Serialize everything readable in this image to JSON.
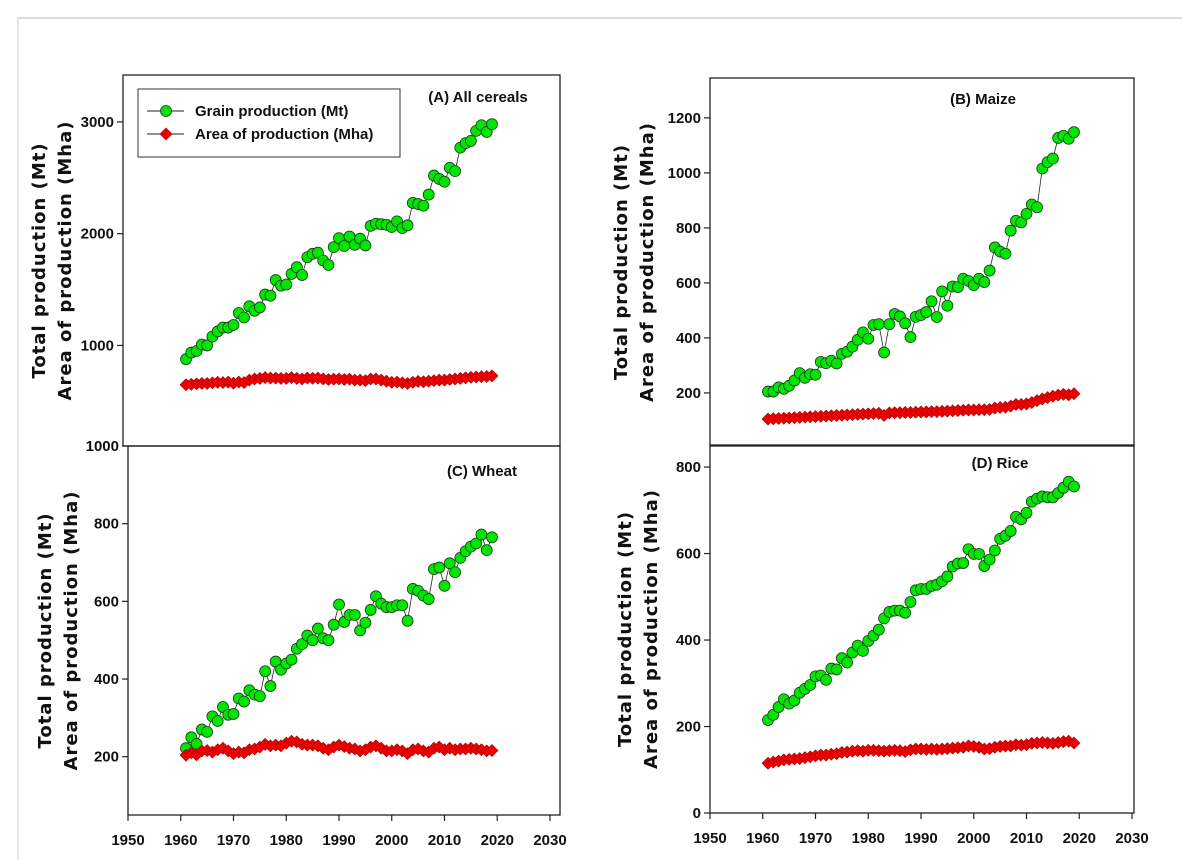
{
  "chart_data": [
    {
      "type": "line",
      "title": "(A) All cereals",
      "ylabel": [
        "Total production (Mt)",
        "Area of production (Mha)"
      ],
      "xlim": [
        1950,
        2030
      ],
      "ylim": [
        100,
        3420
      ],
      "yticks": [
        1000,
        2000,
        3000
      ],
      "grid": false,
      "legend": {
        "placement": "top-left",
        "entries": [
          "Grain production (Mt)",
          "Area of production (Mha)"
        ]
      },
      "x_start": 1961,
      "series": [
        {
          "name": "Grain production (Mt)",
          "marker": "circle",
          "color": "#00e600",
          "values": [
            877,
            936,
            950,
            1008,
            1000,
            1080,
            1125,
            1160,
            1160,
            1183,
            1290,
            1250,
            1350,
            1310,
            1340,
            1455,
            1445,
            1585,
            1535,
            1545,
            1640,
            1700,
            1630,
            1790,
            1820,
            1830,
            1760,
            1720,
            1880,
            1960,
            1890,
            1975,
            1900,
            1955,
            1895,
            2070,
            2090,
            2085,
            2080,
            2060,
            2110,
            2050,
            2075,
            2275,
            2265,
            2250,
            2350,
            2520,
            2490,
            2465,
            2590,
            2560,
            2770,
            2810,
            2830,
            2920,
            2970,
            2910,
            2980
          ]
        },
        {
          "name": "Area of production (Mha)",
          "marker": "diamond",
          "color": "#ee0000",
          "values": [
            648,
            652,
            656,
            660,
            660,
            665,
            670,
            668,
            672,
            662,
            672,
            668,
            690,
            700,
            705,
            712,
            708,
            708,
            705,
            705,
            712,
            705,
            700,
            708,
            706,
            708,
            700,
            695,
            698,
            700,
            695,
            698,
            690,
            690,
            685,
            700,
            700,
            690,
            680,
            670,
            672,
            665,
            660,
            670,
            678,
            675,
            680,
            685,
            690,
            690,
            695,
            700,
            705,
            710,
            715,
            718,
            720,
            722,
            728
          ]
        }
      ]
    },
    {
      "type": "line",
      "title": "(B) Maize",
      "ylabel": [
        "Total production (Mt)",
        "Area of production (Mha)"
      ],
      "xlim": [
        1950,
        2030
      ],
      "ylim": [
        7,
        1345
      ],
      "yticks": [
        200,
        400,
        600,
        800,
        1000,
        1200
      ],
      "grid": false,
      "x_start": 1961,
      "series": [
        {
          "marker": "circle",
          "color": "#00e600",
          "values": [
            205,
            205,
            220,
            215,
            226,
            245,
            272,
            255,
            268,
            266,
            313,
            308,
            317,
            307,
            342,
            350,
            368,
            393,
            420,
            397,
            447,
            450,
            347,
            450,
            487,
            478,
            453,
            403,
            477,
            483,
            494,
            533,
            476,
            569,
            517,
            587,
            585,
            615,
            607,
            592,
            615,
            603,
            645,
            729,
            714,
            706,
            790,
            826,
            820,
            851,
            885,
            875,
            1016,
            1039,
            1052,
            1127,
            1135,
            1124,
            1148
          ]
        },
        {
          "marker": "diamond",
          "color": "#ee0000",
          "values": [
            105,
            106,
            107,
            108,
            109,
            110,
            111,
            112,
            113,
            114,
            115,
            116,
            117,
            118,
            119,
            120,
            121,
            122,
            123,
            124,
            125,
            126,
            118,
            127,
            128,
            128,
            129,
            129,
            130,
            131,
            131,
            132,
            132,
            133,
            134,
            135,
            136,
            137,
            138,
            138,
            139,
            139,
            140,
            145,
            147,
            148,
            152,
            158,
            158,
            160,
            165,
            172,
            178,
            183,
            188,
            192,
            195,
            193,
            197
          ]
        }
      ]
    },
    {
      "type": "line",
      "title": "(C) Wheat",
      "ylabel": [
        "Total production (Mt)",
        "Area of production (Mha)"
      ],
      "xlim": [
        1950,
        2030
      ],
      "ylim": [
        50,
        1000
      ],
      "yticks": [
        200,
        400,
        600,
        800,
        1000
      ],
      "xticks": [
        1950,
        1960,
        1970,
        1980,
        1990,
        2000,
        2010,
        2020,
        2030
      ],
      "grid": false,
      "x_start": 1961,
      "series": [
        {
          "marker": "circle",
          "color": "#00e600",
          "values": [
            222,
            250,
            233,
            270,
            264,
            304,
            292,
            328,
            308,
            310,
            350,
            342,
            371,
            360,
            356,
            420,
            382,
            445,
            424,
            440,
            450,
            478,
            490,
            512,
            500,
            530,
            505,
            500,
            540,
            592,
            547,
            565,
            565,
            525,
            545,
            578,
            613,
            594,
            585,
            585,
            590,
            590,
            550,
            632,
            627,
            615,
            606,
            683,
            687,
            640,
            698,
            675,
            712,
            729,
            741,
            749,
            772,
            732,
            765
          ]
        },
        {
          "marker": "diamond",
          "color": "#ee0000",
          "values": [
            204,
            210,
            205,
            215,
            216,
            212,
            218,
            222,
            215,
            208,
            212,
            210,
            218,
            220,
            225,
            232,
            228,
            230,
            228,
            235,
            240,
            238,
            232,
            230,
            230,
            228,
            222,
            218,
            225,
            230,
            226,
            222,
            220,
            215,
            218,
            225,
            228,
            222,
            215,
            215,
            218,
            215,
            208,
            218,
            220,
            215,
            212,
            222,
            225,
            218,
            222,
            218,
            220,
            220,
            222,
            220,
            218,
            215,
            216
          ]
        }
      ]
    },
    {
      "type": "line",
      "title": "(D) Rice",
      "ylabel": [
        "Total production (Mt)",
        "Area of production (Mha)"
      ],
      "xlim": [
        1950,
        2030
      ],
      "ylim": [
        0,
        851
      ],
      "yticks": [
        0,
        200,
        400,
        600,
        800
      ],
      "xticks": [
        1950,
        1960,
        1970,
        1980,
        1990,
        2000,
        2010,
        2020,
        2030
      ],
      "grid": false,
      "x_start": 1961,
      "series": [
        {
          "marker": "circle",
          "color": "#00e600",
          "values": [
            215,
            227,
            245,
            263,
            253,
            260,
            278,
            287,
            296,
            316,
            318,
            308,
            334,
            332,
            358,
            348,
            371,
            387,
            375,
            398,
            410,
            424,
            450,
            465,
            468,
            468,
            463,
            488,
            515,
            518,
            518,
            525,
            528,
            536,
            547,
            570,
            577,
            578,
            610,
            599,
            599,
            571,
            586,
            607,
            634,
            641,
            652,
            685,
            679,
            694,
            720,
            727,
            732,
            730,
            730,
            740,
            752,
            766,
            755
          ]
        },
        {
          "marker": "diamond",
          "color": "#ee0000",
          "values": [
            115,
            118,
            120,
            123,
            124,
            125,
            126,
            128,
            130,
            132,
            134,
            134,
            136,
            137,
            140,
            141,
            143,
            144,
            143,
            145,
            145,
            144,
            143,
            144,
            145,
            144,
            142,
            146,
            148,
            148,
            147,
            148,
            147,
            148,
            149,
            150,
            151,
            152,
            155,
            154,
            152,
            148,
            149,
            152,
            154,
            155,
            155,
            158,
            157,
            158,
            161,
            162,
            163,
            162,
            161,
            163,
            165,
            166,
            162
          ]
        }
      ]
    }
  ]
}
